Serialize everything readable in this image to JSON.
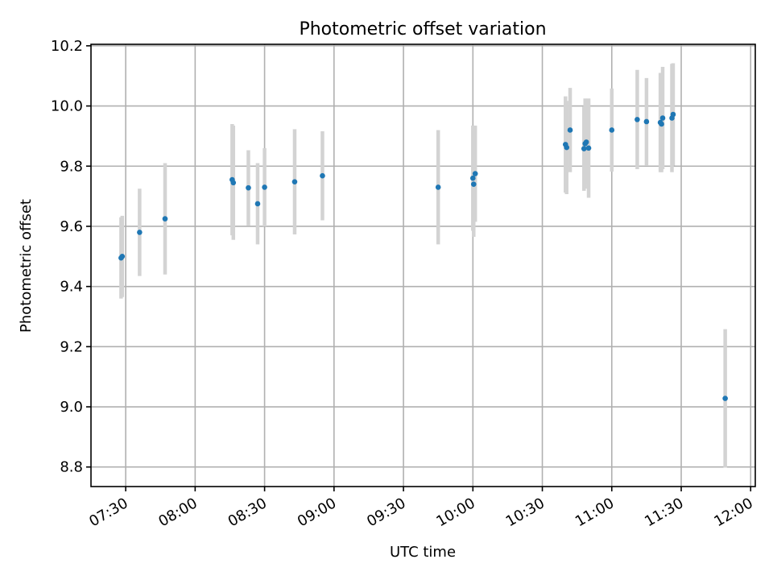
{
  "chart_data": {
    "type": "scatter",
    "title": "Photometric offset variation",
    "xlabel": "UTC time",
    "ylabel": "Photometric offset",
    "x_axis": "time (UTC)",
    "xlim": [
      "07:15",
      "12:02"
    ],
    "ylim": [
      8.735,
      10.205
    ],
    "grid": true,
    "legend": null,
    "x_ticks": [
      "07:30",
      "08:00",
      "08:30",
      "09:00",
      "09:30",
      "10:00",
      "10:30",
      "11:00",
      "11:30",
      "12:00"
    ],
    "y_ticks": [
      "8.8",
      "9.0",
      "9.2",
      "9.4",
      "9.6",
      "9.8",
      "10.0",
      "10.2"
    ],
    "colors": {
      "points": "#1f77b4",
      "errorbars": "#d3d3d3",
      "grid": "#b0b0b0"
    },
    "series": [
      {
        "points": [
          {
            "time": "07:28",
            "y": 9.495,
            "yerr": 0.135
          },
          {
            "time": "07:28:30",
            "y": 9.5,
            "yerr": 0.135
          },
          {
            "time": "07:36",
            "y": 9.58,
            "yerr": 0.145
          },
          {
            "time": "07:47",
            "y": 9.625,
            "yerr": 0.185
          },
          {
            "time": "08:16",
            "y": 9.755,
            "yerr": 0.185
          },
          {
            "time": "08:16:30",
            "y": 9.745,
            "yerr": 0.19
          },
          {
            "time": "08:23",
            "y": 9.728,
            "yerr": 0.125
          },
          {
            "time": "08:27",
            "y": 9.675,
            "yerr": 0.135
          },
          {
            "time": "08:30",
            "y": 9.73,
            "yerr": 0.13
          },
          {
            "time": "08:43",
            "y": 9.748,
            "yerr": 0.175
          },
          {
            "time": "08:55",
            "y": 9.768,
            "yerr": 0.148
          },
          {
            "time": "09:45",
            "y": 9.73,
            "yerr": 0.19
          },
          {
            "time": "10:00",
            "y": 9.76,
            "yerr": 0.175
          },
          {
            "time": "10:00:20",
            "y": 9.74,
            "yerr": 0.175
          },
          {
            "time": "10:01",
            "y": 9.775,
            "yerr": 0.16
          },
          {
            "time": "10:40",
            "y": 9.872,
            "yerr": 0.16
          },
          {
            "time": "10:40:30",
            "y": 9.862,
            "yerr": 0.155
          },
          {
            "time": "10:42",
            "y": 9.92,
            "yerr": 0.14
          },
          {
            "time": "10:48",
            "y": 9.858,
            "yerr": 0.14
          },
          {
            "time": "10:48:30",
            "y": 9.875,
            "yerr": 0.15
          },
          {
            "time": "10:49",
            "y": 9.88,
            "yerr": 0.14
          },
          {
            "time": "10:50",
            "y": 9.86,
            "yerr": 0.165
          },
          {
            "time": "11:00",
            "y": 9.92,
            "yerr": 0.138
          },
          {
            "time": "11:11",
            "y": 9.955,
            "yerr": 0.165
          },
          {
            "time": "11:15",
            "y": 9.948,
            "yerr": 0.145
          },
          {
            "time": "11:21",
            "y": 9.945,
            "yerr": 0.165
          },
          {
            "time": "11:21:30",
            "y": 9.94,
            "yerr": 0.16
          },
          {
            "time": "11:22",
            "y": 9.96,
            "yerr": 0.17
          },
          {
            "time": "11:26",
            "y": 9.96,
            "yerr": 0.18
          },
          {
            "time": "11:26:30",
            "y": 9.972,
            "yerr": 0.17
          },
          {
            "time": "11:49",
            "y": 9.028,
            "yerr": 0.23
          }
        ]
      }
    ]
  }
}
